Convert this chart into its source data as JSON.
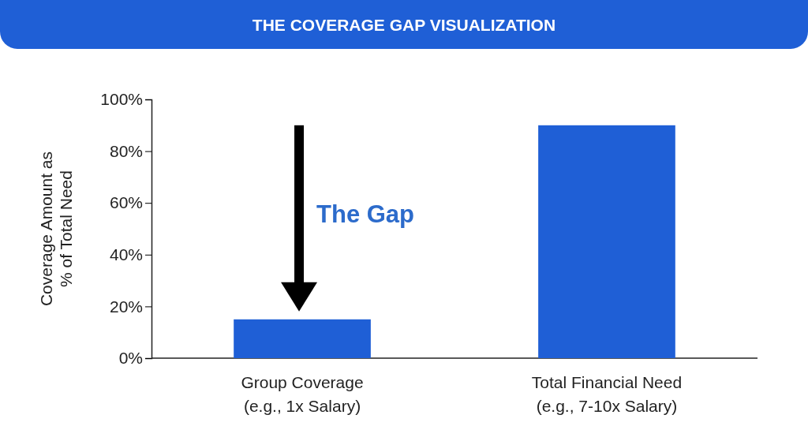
{
  "chart_data": {
    "type": "bar",
    "title": "THE COVERAGE GAP VISUALIZATION",
    "ylabel": "Coverage Amount as\n% of Total Need",
    "categories": [
      "Group Coverage\n(e.g., 1x Salary)",
      "Total Financial Need\n(e.g., 7-10x Salary)"
    ],
    "values": [
      15,
      90
    ],
    "color": "#1f5fd6",
    "ylim": [
      0,
      100
    ],
    "yticks": [
      {
        "value": 0,
        "label": "0%"
      },
      {
        "value": 20,
        "label": "20%"
      },
      {
        "value": 40,
        "label": "40%"
      },
      {
        "value": 60,
        "label": "60%"
      },
      {
        "value": 80,
        "label": "80%"
      },
      {
        "value": 100,
        "label": "100%"
      }
    ],
    "annotations": [
      "The Gap"
    ]
  }
}
